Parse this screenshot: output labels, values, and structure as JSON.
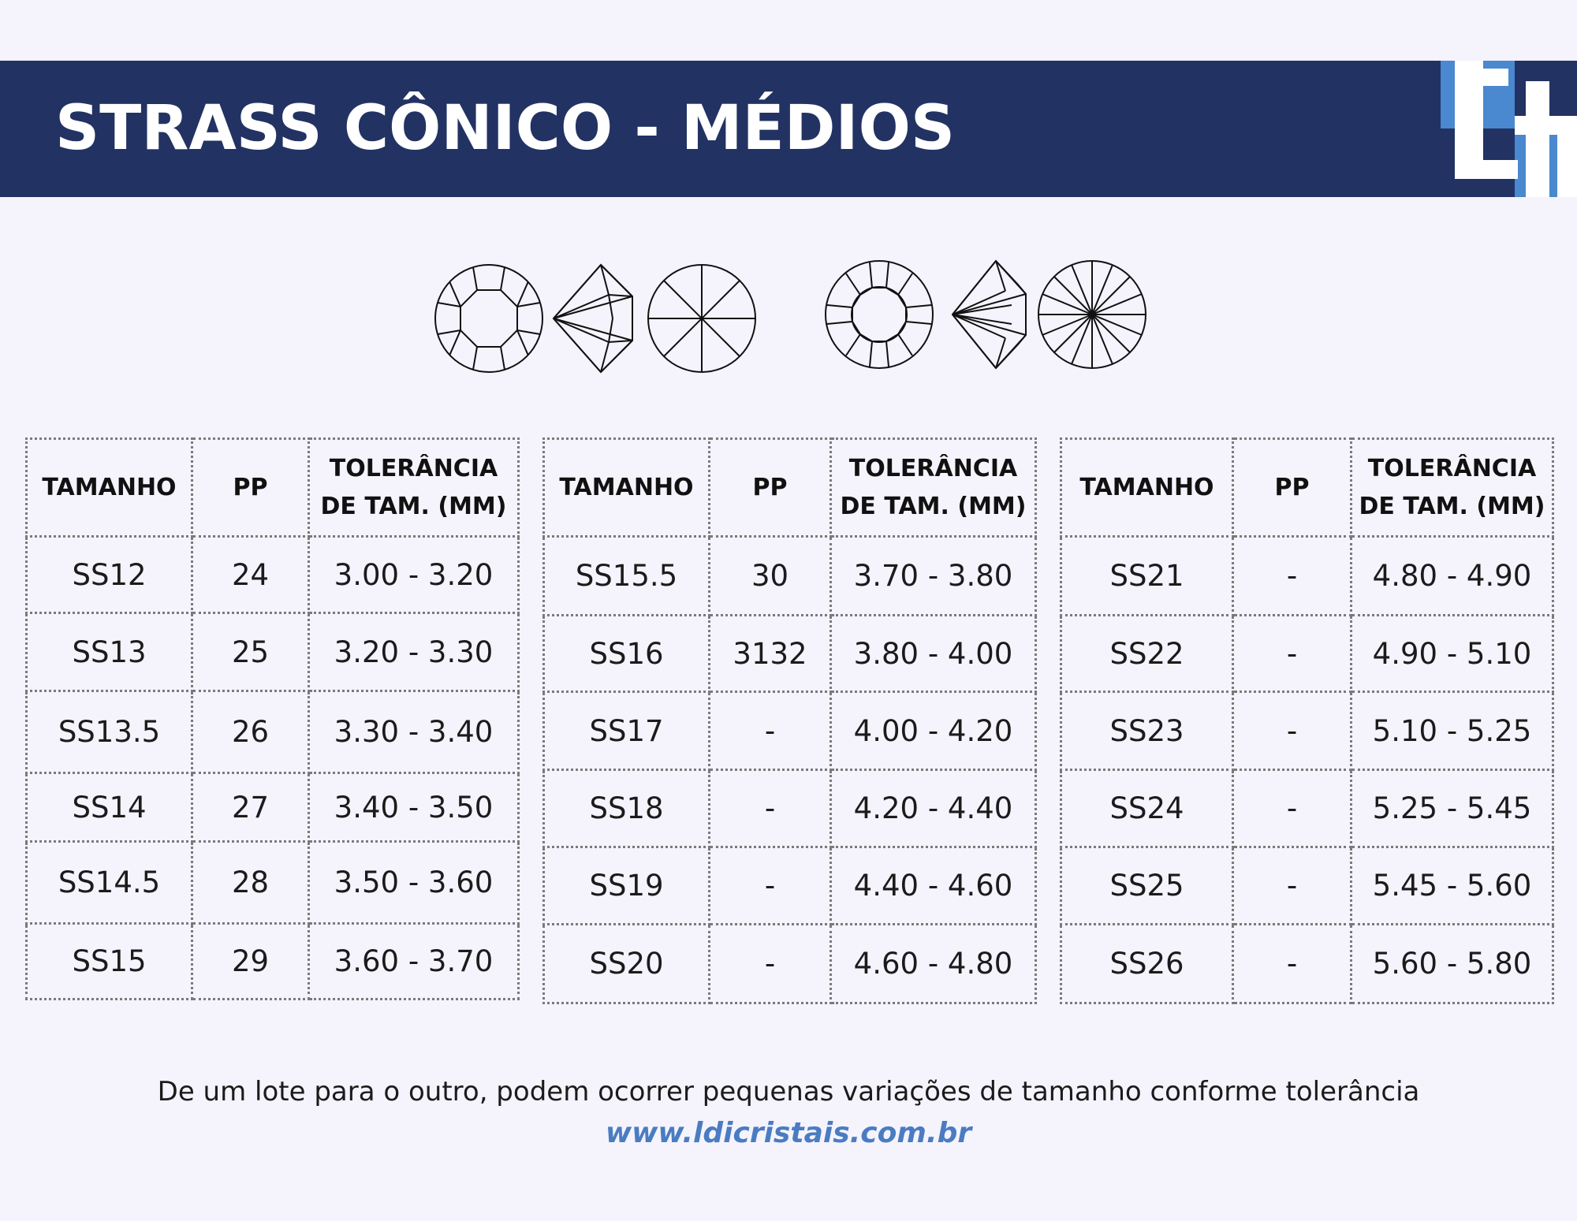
{
  "title": "STRASS CÔNICO - MÉDIOS",
  "colors": {
    "banner": "#223263",
    "accent": "#4a88cf",
    "link": "#4a7cc2"
  },
  "icons": [
    "gem-octagon-top-icon",
    "gem-side-icon",
    "gem-eight-ray-bottom-icon",
    "gem-sixteen-facet-top-icon",
    "gem-side-icon",
    "gem-sixteen-ray-bottom-icon"
  ],
  "tables": [
    {
      "headers": {
        "size": "TAMANHO",
        "pp": "PP",
        "tol_line1": "TOLERÂNCIA",
        "tol_line2": "DE TAM. (MM)"
      },
      "rows": [
        {
          "size": "SS12",
          "pp": "24",
          "tol": "3.00 - 3.20"
        },
        {
          "size": "SS13",
          "pp": "25",
          "tol": "3.20 - 3.30"
        },
        {
          "size": "SS13.5",
          "pp": "26",
          "tol": "3.30 - 3.40"
        },
        {
          "size": "SS14",
          "pp": "27",
          "tol": "3.40 - 3.50"
        },
        {
          "size": "SS14.5",
          "pp": "28",
          "tol": "3.50 - 3.60"
        },
        {
          "size": "SS15",
          "pp": "29",
          "tol": "3.60 - 3.70"
        }
      ]
    },
    {
      "headers": {
        "size": "TAMANHO",
        "pp": "PP",
        "tol_line1": "TOLERÂNCIA",
        "tol_line2": "DE TAM. (MM)"
      },
      "rows": [
        {
          "size": "SS15.5",
          "pp": "30",
          "tol": "3.70 - 3.80"
        },
        {
          "size": "SS16",
          "pp": "3132",
          "tol": "3.80 - 4.00"
        },
        {
          "size": "SS17",
          "pp": "-",
          "tol": "4.00 - 4.20"
        },
        {
          "size": "SS18",
          "pp": "-",
          "tol": "4.20 - 4.40"
        },
        {
          "size": "SS19",
          "pp": "-",
          "tol": "4.40 - 4.60"
        },
        {
          "size": "SS20",
          "pp": "-",
          "tol": "4.60 - 4.80"
        }
      ]
    },
    {
      "headers": {
        "size": "TAMANHO",
        "pp": "PP",
        "tol_line1": "TOLERÂNCIA",
        "tol_line2": "DE TAM. (MM)"
      },
      "rows": [
        {
          "size": "SS21",
          "pp": "-",
          "tol": "4.80 - 4.90"
        },
        {
          "size": "SS22",
          "pp": "-",
          "tol": "4.90 - 5.10"
        },
        {
          "size": "SS23",
          "pp": "-",
          "tol": "5.10 - 5.25"
        },
        {
          "size": "SS24",
          "pp": "-",
          "tol": "5.25 - 5.45"
        },
        {
          "size": "SS25",
          "pp": "-",
          "tol": "5.45 - 5.60"
        },
        {
          "size": "SS26",
          "pp": "-",
          "tol": "5.60 - 5.80"
        }
      ]
    }
  ],
  "footer": {
    "note": "De um lote para o outro, podem ocorrer pequenas variações de tamanho conforme tolerância",
    "website": "www.ldicristais.com.br"
  }
}
